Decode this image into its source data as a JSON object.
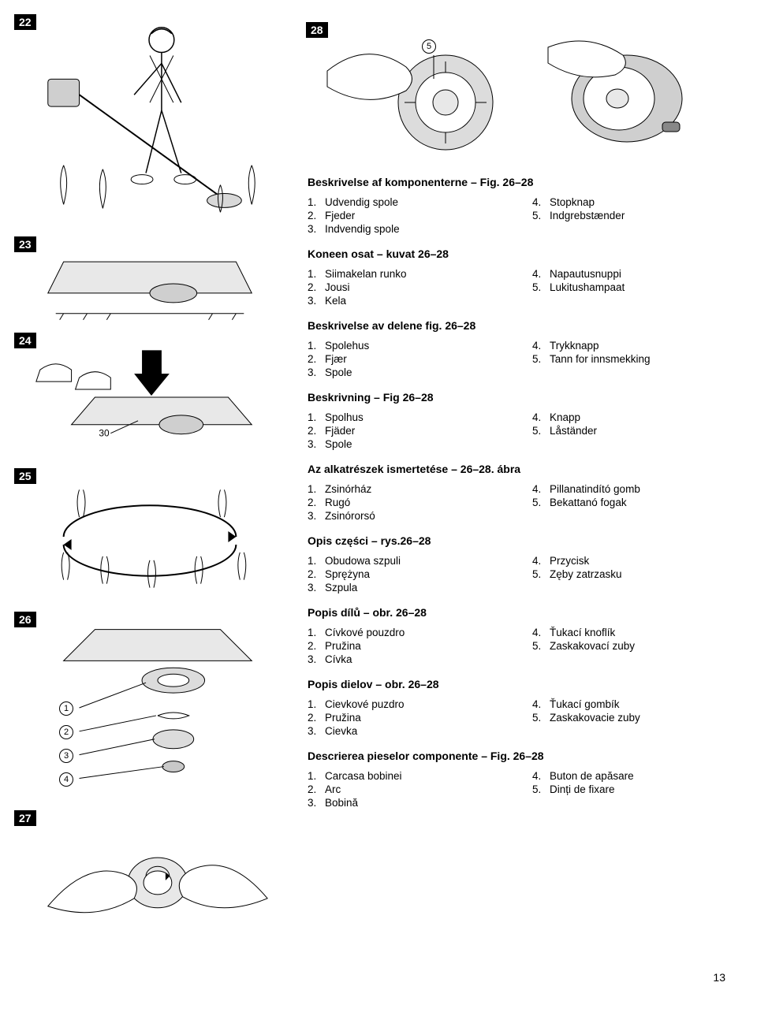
{
  "page_number": "13",
  "figures": {
    "f22": {
      "num": "22"
    },
    "f23": {
      "num": "23"
    },
    "f24": {
      "num": "24",
      "arrow_label": "30"
    },
    "f25": {
      "num": "25"
    },
    "f26": {
      "num": "26",
      "callouts": [
        "1",
        "2",
        "3",
        "4"
      ]
    },
    "f27": {
      "num": "27"
    },
    "f28": {
      "num": "28",
      "callouts": [
        "5"
      ]
    }
  },
  "sections": [
    {
      "title": "Beskrivelse af komponenterne – Fig. 26–28",
      "left": [
        {
          "n": "1.",
          "t": "Udvendig spole"
        },
        {
          "n": "2.",
          "t": "Fjeder"
        },
        {
          "n": "3.",
          "t": "Indvendig spole"
        }
      ],
      "right": [
        {
          "n": "4.",
          "t": "Stopknap"
        },
        {
          "n": "5.",
          "t": "Indgrebstænder"
        }
      ]
    },
    {
      "title": "Koneen osat – kuvat 26–28",
      "left": [
        {
          "n": "1.",
          "t": "Siimakelan runko"
        },
        {
          "n": "2.",
          "t": "Jousi"
        },
        {
          "n": "3.",
          "t": "Kela"
        }
      ],
      "right": [
        {
          "n": "4.",
          "t": "Napautusnuppi"
        },
        {
          "n": "5.",
          "t": "Lukitushampaat"
        }
      ]
    },
    {
      "title": "Beskrivelse av delene fig. 26–28",
      "left": [
        {
          "n": "1.",
          "t": "Spolehus"
        },
        {
          "n": "2.",
          "t": "Fjær"
        },
        {
          "n": "3.",
          "t": "Spole"
        }
      ],
      "right": [
        {
          "n": "4.",
          "t": "Trykknapp"
        },
        {
          "n": "5.",
          "t": "Tann for innsmekking"
        }
      ]
    },
    {
      "title": "Beskrivning – Fig 26–28",
      "left": [
        {
          "n": "1.",
          "t": "Spolhus"
        },
        {
          "n": "2.",
          "t": "Fjäder"
        },
        {
          "n": "3.",
          "t": "Spole"
        }
      ],
      "right": [
        {
          "n": "4.",
          "t": "Knapp"
        },
        {
          "n": "5.",
          "t": "Låständer"
        }
      ]
    },
    {
      "title": "Az alkatrészek ismertetése – 26–28. ábra",
      "left": [
        {
          "n": "1.",
          "t": "Zsinórház"
        },
        {
          "n": "2.",
          "t": "Rugó"
        },
        {
          "n": "3.",
          "t": "Zsinórorsó"
        }
      ],
      "right": [
        {
          "n": "4.",
          "t": "Pillanatindító gomb"
        },
        {
          "n": "5.",
          "t": "Bekattanó fogak"
        }
      ]
    },
    {
      "title": "Opis części – rys.26–28",
      "left": [
        {
          "n": "1.",
          "t": "Obudowa szpuli"
        },
        {
          "n": "2.",
          "t": "Sprężyna"
        },
        {
          "n": "3.",
          "t": "Szpula"
        }
      ],
      "right": [
        {
          "n": "4.",
          "t": "Przycisk"
        },
        {
          "n": "5.",
          "t": "Zęby zatrzasku"
        }
      ]
    },
    {
      "title": "Popis dílů – obr. 26–28",
      "left": [
        {
          "n": "1.",
          "t": "Cívkové pouzdro"
        },
        {
          "n": "2.",
          "t": "Pružina"
        },
        {
          "n": "3.",
          "t": "Cívka"
        }
      ],
      "right": [
        {
          "n": "4.",
          "t": "Ťukací knoflík"
        },
        {
          "n": "5.",
          "t": "Zaskakovací zuby"
        }
      ]
    },
    {
      "title": "Popis dielov – obr. 26–28",
      "left": [
        {
          "n": "1.",
          "t": "Cievkové puzdro"
        },
        {
          "n": "2.",
          "t": "Pružina"
        },
        {
          "n": "3.",
          "t": "Cievka"
        }
      ],
      "right": [
        {
          "n": "4.",
          "t": "Ťukací gombík"
        },
        {
          "n": "5.",
          "t": "Zaskakovacie zuby"
        }
      ]
    },
    {
      "title": "Descrierea pieselor componente – Fig. 26–28",
      "left": [
        {
          "n": "1.",
          "t": "Carcasa bobinei"
        },
        {
          "n": "2.",
          "t": "Arc"
        },
        {
          "n": "3.",
          "t": "Bobină"
        }
      ],
      "right": [
        {
          "n": "4.",
          "t": "Buton de apăsare"
        },
        {
          "n": "5.",
          "t": "Dinți de fixare"
        }
      ]
    }
  ]
}
